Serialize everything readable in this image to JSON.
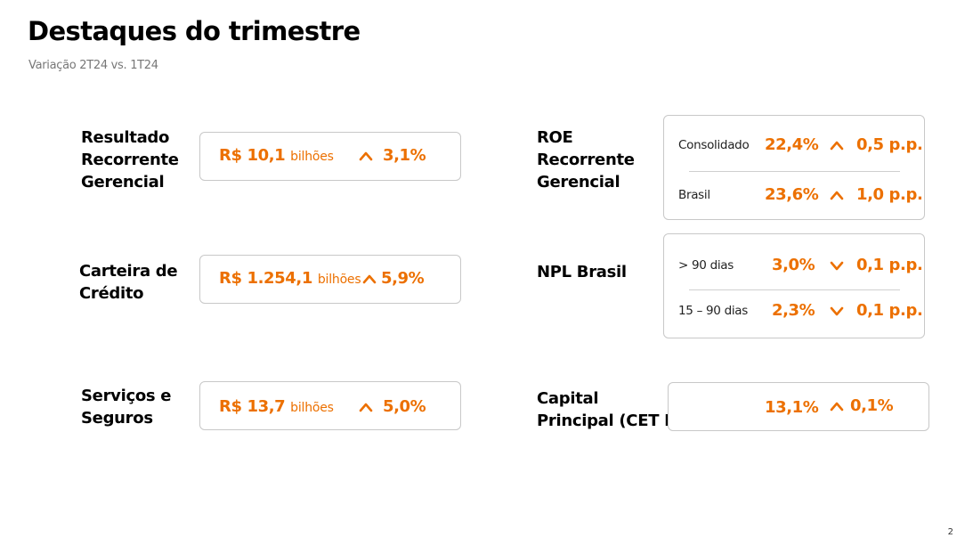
{
  "header": {
    "title": "Destaques do trimestre",
    "subtitle": "Variação 2T24 vs. 1T24"
  },
  "left_metrics": [
    {
      "label_lines": [
        "Resultado",
        "Recorrente",
        "Gerencial"
      ],
      "value": "R$ 10,1",
      "unit": "bilhões",
      "direction": "up",
      "change": "3,1%"
    },
    {
      "label_lines": [
        "Carteira de",
        "Crédito"
      ],
      "value": "R$ 1.254,1",
      "unit": "bilhões",
      "direction": "up",
      "change": "5,9%"
    },
    {
      "label_lines": [
        "Serviços e",
        "Seguros"
      ],
      "value": "R$ 13,7",
      "unit": "bilhões",
      "direction": "up",
      "change": "5,0%"
    }
  ],
  "right_metrics": [
    {
      "label_lines": [
        "ROE",
        "Recorrente",
        "Gerencial"
      ],
      "rows": [
        {
          "label": "Consolidado",
          "value": "22,4%",
          "direction": "up",
          "change": "0,5 p.p."
        },
        {
          "label": "Brasil",
          "value": "23,6%",
          "direction": "up",
          "change": "1,0 p.p."
        }
      ]
    },
    {
      "label_lines": [
        "NPL Brasil"
      ],
      "rows": [
        {
          "label": "> 90 dias",
          "value": "3,0%",
          "direction": "down",
          "change": "0,1 p.p."
        },
        {
          "label": "15 – 90 dias",
          "value": "2,3%",
          "direction": "down",
          "change": "0,1 p.p."
        }
      ]
    },
    {
      "label_lines": [
        "Capital",
        "Principal (CET I)"
      ],
      "rows": [
        {
          "label": "",
          "value": "13,1%",
          "direction": "up",
          "change": "0,1%"
        }
      ]
    }
  ],
  "colors": {
    "accent": "#ec7000",
    "border": "#c8c8c8"
  },
  "icons": {
    "up": "chevron-up-icon",
    "down": "chevron-down-icon"
  },
  "page_number": "2"
}
